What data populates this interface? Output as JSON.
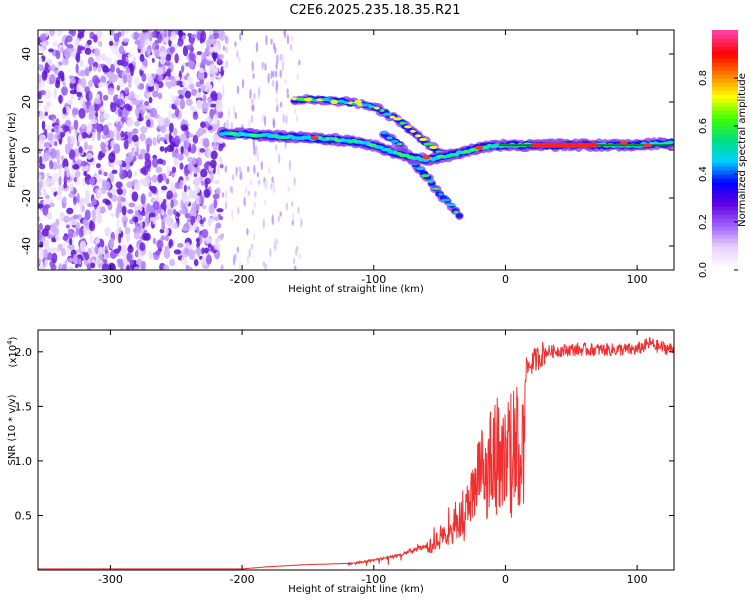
{
  "title": "C2E6.2025.235.18.35.R21",
  "chart_data": [
    {
      "type": "heatmap",
      "name": "spectrogram",
      "xlabel": "Height of straight line (km)",
      "ylabel": "Frequency (Hz)",
      "xlim": [
        -355,
        128
      ],
      "ylim": [
        -50,
        50
      ],
      "xticks": [
        -300,
        -200,
        -100,
        0,
        100
      ],
      "yticks": [
        -40,
        -20,
        0,
        20,
        40
      ],
      "colorbar": {
        "label": "Normalized spectral amplitude",
        "range": [
          0,
          1
        ],
        "ticks": [
          "0.0",
          "0.2",
          "0.4",
          "0.6",
          "0.8"
        ],
        "tick_values": [
          0.0,
          0.2,
          0.4,
          0.6,
          0.8
        ],
        "colormap": [
          "#ffffff",
          "#e8d0ff",
          "#a060ff",
          "#6000e0",
          "#0000ff",
          "#00d0ff",
          "#00e080",
          "#40ff00",
          "#ffff00",
          "#ff8000",
          "#ff0000",
          "#ff40a0"
        ]
      },
      "features": {
        "noise_region_x": [
          -355,
          -215
        ],
        "main_track": [
          [
            -215,
            7
          ],
          [
            -180,
            6
          ],
          [
            -150,
            5
          ],
          [
            -120,
            4
          ],
          [
            -100,
            2
          ],
          [
            -80,
            -2
          ],
          [
            -60,
            -4
          ],
          [
            -40,
            -2
          ],
          [
            -20,
            1
          ],
          [
            0,
            2
          ],
          [
            40,
            2
          ],
          [
            80,
            2
          ],
          [
            100,
            2
          ],
          [
            128,
            3
          ]
        ],
        "upper_branch": [
          [
            -160,
            21
          ],
          [
            -140,
            21
          ],
          [
            -120,
            20
          ],
          [
            -100,
            18
          ],
          [
            -80,
            12
          ],
          [
            -65,
            5
          ],
          [
            -50,
            -1
          ],
          [
            -40,
            -2
          ]
        ],
        "lower_branch": [
          [
            -95,
            8
          ],
          [
            -80,
            2
          ],
          [
            -70,
            -5
          ],
          [
            -60,
            -11
          ],
          [
            -50,
            -18
          ],
          [
            -40,
            -24
          ],
          [
            -30,
            -30
          ]
        ],
        "strong_segment_x": [
          20,
          70
        ]
      }
    },
    {
      "type": "line",
      "name": "snr",
      "xlabel": "Height of straight line (km)",
      "ylabel": "SNR (10 * v/v)",
      "scale_label": "(x10",
      "scale_exponent": "4",
      "scale_suffix": ")",
      "xlim": [
        -355,
        128
      ],
      "ylim": [
        0,
        2.2
      ],
      "xticks": [
        -300,
        -200,
        -100,
        0,
        100
      ],
      "yticks": [
        "0.5",
        "1.0",
        "1.5",
        "2.0"
      ],
      "ytick_values": [
        0.5,
        1.0,
        1.5,
        2.0
      ],
      "color": "#f03030",
      "x": [
        -355,
        -300,
        -250,
        -200,
        -180,
        -150,
        -120,
        -100,
        -80,
        -60,
        -50,
        -40,
        -30,
        -20,
        -15,
        -10,
        0,
        5,
        10,
        20,
        30,
        40,
        50,
        60,
        80,
        100,
        110,
        115,
        128
      ],
      "y": [
        0.01,
        0.01,
        0.01,
        0.01,
        0.03,
        0.05,
        0.06,
        0.1,
        0.15,
        0.25,
        0.4,
        0.55,
        0.8,
        1.2,
        1.5,
        1.6,
        1.55,
        1.7,
        1.75,
        1.9,
        2.0,
        2.01,
        2.02,
        2.02,
        2.02,
        2.02,
        2.08,
        2.05,
        2.02
      ]
    }
  ]
}
